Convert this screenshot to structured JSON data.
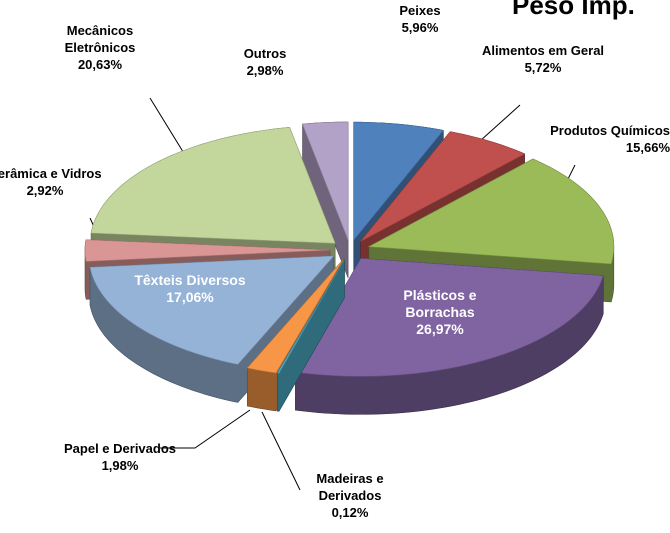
{
  "chart_data": {
    "type": "pie",
    "title": "Peso Imp.",
    "categories": [
      "Peixes",
      "Alimentos em Geral",
      "Produtos Químicos",
      "Plásticos e Borrachas",
      "Madeiras e Derivados",
      "Papel e Derivados",
      "Têxteis Diversos",
      "Cerâmica e Vidros",
      "Mecânicos Eletrônicos",
      "Outros"
    ],
    "values": [
      5.96,
      5.72,
      15.66,
      26.97,
      0.12,
      1.98,
      17.06,
      2.92,
      20.63,
      2.98
    ],
    "value_labels": [
      "5,96%",
      "5,72%",
      "15,66%",
      "26,97%",
      "0,12%",
      "1,98%",
      "17,06%",
      "2,92%",
      "20,63%",
      "2,98%"
    ],
    "colors": [
      "#4f81bd",
      "#c0504d",
      "#9bbb59",
      "#8064a2",
      "#4bacc6",
      "#f79646",
      "#95b3d7",
      "#d99694",
      "#c3d69b",
      "#b3a2c7"
    ]
  }
}
